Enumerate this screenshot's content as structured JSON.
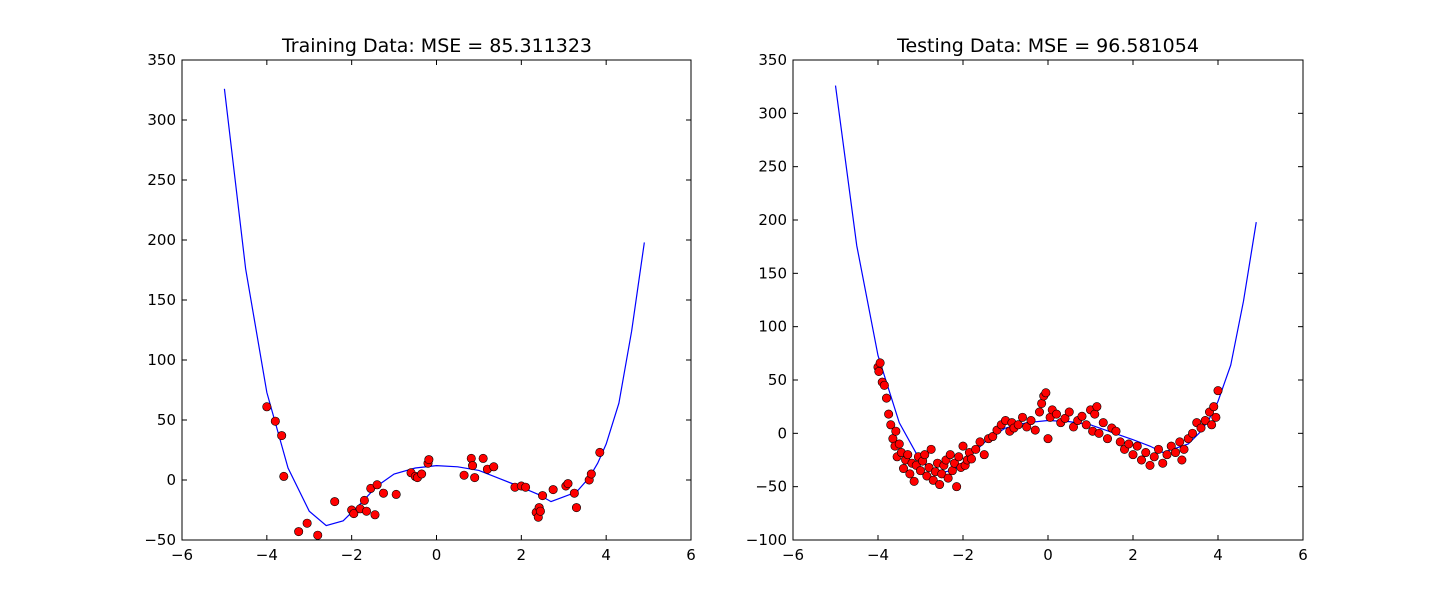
{
  "chart_data": [
    {
      "type": "scatter",
      "title": "Training Data: MSE = 85.311323",
      "xlabel": "",
      "ylabel": "",
      "xlim": [
        -6,
        6
      ],
      "ylim": [
        -50,
        350
      ],
      "xticks": [
        -6,
        -4,
        -2,
        0,
        2,
        4,
        6
      ],
      "yticks": [
        -50,
        0,
        50,
        100,
        150,
        200,
        250,
        300,
        350
      ],
      "xtick_labels": [
        "−6",
        "−4",
        "−2",
        "0",
        "2",
        "4",
        "6"
      ],
      "ytick_labels": [
        "−50",
        "0",
        "50",
        "100",
        "150",
        "200",
        "250",
        "300",
        "350"
      ],
      "grid": false,
      "fit_line": {
        "color": "#0000ff",
        "x_range": [
          -5,
          4.9
        ],
        "points": [
          [
            -5,
            326
          ],
          [
            -4.5,
            176
          ],
          [
            -4,
            73
          ],
          [
            -3.5,
            10
          ],
          [
            -3,
            -26
          ],
          [
            -2.6,
            -38
          ],
          [
            -2.2,
            -34
          ],
          [
            -1.8,
            -20
          ],
          [
            -1.4,
            -5
          ],
          [
            -1,
            5
          ],
          [
            -0.5,
            10
          ],
          [
            0,
            12
          ],
          [
            0.5,
            11
          ],
          [
            1,
            8
          ],
          [
            1.5,
            1
          ],
          [
            2,
            -6
          ],
          [
            2.4,
            -12
          ],
          [
            2.7,
            -18
          ],
          [
            3,
            -14
          ],
          [
            3.3,
            -10
          ],
          [
            3.6,
            2
          ],
          [
            3.8,
            14
          ],
          [
            4,
            30
          ],
          [
            4.3,
            64
          ],
          [
            4.6,
            124
          ],
          [
            4.9,
            198
          ]
        ]
      },
      "points": {
        "color": "#ff0000",
        "x": [
          -4.0,
          -3.8,
          -3.65,
          -3.6,
          -3.25,
          -3.05,
          -2.8,
          -2.4,
          -2.0,
          -1.95,
          -1.8,
          -1.7,
          -1.65,
          -1.55,
          -1.45,
          -1.4,
          -1.25,
          -0.95,
          -0.6,
          -0.5,
          -0.45,
          -0.35,
          -0.2,
          -0.18,
          0.65,
          0.82,
          0.85,
          0.9,
          1.1,
          1.2,
          1.35,
          1.85,
          2.0,
          2.1,
          2.35,
          2.4,
          2.42,
          2.45,
          2.5,
          2.75,
          3.05,
          3.1,
          3.25,
          3.3,
          3.6,
          3.65,
          3.85
        ],
        "y": [
          61,
          49,
          37,
          3,
          -43,
          -36,
          -46,
          -18,
          -25,
          -28,
          -24,
          -17,
          -26,
          -7,
          -29,
          -4,
          -11,
          -12,
          6,
          3,
          2,
          5,
          14,
          17,
          4,
          18,
          12,
          2,
          18,
          9,
          11,
          -6,
          -5,
          -6,
          -27,
          -31,
          -23,
          -26,
          -13,
          -8,
          -5,
          -3,
          -11,
          -23,
          0,
          5,
          23
        ]
      }
    },
    {
      "type": "scatter",
      "title": "Testing Data: MSE = 96.581054",
      "xlabel": "",
      "ylabel": "",
      "xlim": [
        -6,
        6
      ],
      "ylim": [
        -100,
        350
      ],
      "xticks": [
        -6,
        -4,
        -2,
        0,
        2,
        4,
        6
      ],
      "yticks": [
        -100,
        -50,
        0,
        50,
        100,
        150,
        200,
        250,
        300,
        350
      ],
      "xtick_labels": [
        "−6",
        "−4",
        "−2",
        "0",
        "2",
        "4",
        "6"
      ],
      "ytick_labels": [
        "−100",
        "−50",
        "0",
        "50",
        "100",
        "150",
        "200",
        "250",
        "300",
        "350"
      ],
      "grid": false,
      "fit_line": {
        "color": "#0000ff",
        "x_range": [
          -5,
          4.9
        ],
        "points": [
          [
            -5,
            326
          ],
          [
            -4.5,
            176
          ],
          [
            -4,
            73
          ],
          [
            -3.5,
            10
          ],
          [
            -3,
            -26
          ],
          [
            -2.6,
            -38
          ],
          [
            -2.2,
            -34
          ],
          [
            -1.8,
            -20
          ],
          [
            -1.4,
            -5
          ],
          [
            -1,
            5
          ],
          [
            -0.5,
            10
          ],
          [
            0,
            12
          ],
          [
            0.5,
            11
          ],
          [
            1,
            8
          ],
          [
            1.5,
            1
          ],
          [
            2,
            -6
          ],
          [
            2.4,
            -12
          ],
          [
            2.7,
            -18
          ],
          [
            3,
            -14
          ],
          [
            3.3,
            -10
          ],
          [
            3.6,
            2
          ],
          [
            3.8,
            14
          ],
          [
            4,
            30
          ],
          [
            4.3,
            64
          ],
          [
            4.6,
            124
          ],
          [
            4.9,
            198
          ]
        ]
      },
      "points": {
        "color": "#ff0000",
        "x": [
          -4.0,
          -3.98,
          -3.95,
          -3.9,
          -3.85,
          -3.8,
          -3.75,
          -3.7,
          -3.65,
          -3.6,
          -3.58,
          -3.55,
          -3.5,
          -3.45,
          -3.4,
          -3.35,
          -3.3,
          -3.25,
          -3.2,
          -3.15,
          -3.1,
          -3.05,
          -3.0,
          -2.95,
          -2.9,
          -2.85,
          -2.8,
          -2.75,
          -2.7,
          -2.65,
          -2.6,
          -2.55,
          -2.5,
          -2.45,
          -2.4,
          -2.35,
          -2.3,
          -2.25,
          -2.2,
          -2.15,
          -2.1,
          -2.05,
          -2.0,
          -1.95,
          -1.9,
          -1.85,
          -1.8,
          -1.7,
          -1.6,
          -1.5,
          -1.4,
          -1.3,
          -1.2,
          -1.1,
          -1.0,
          -0.9,
          -0.85,
          -0.8,
          -0.7,
          -0.6,
          -0.5,
          -0.4,
          -0.3,
          -0.2,
          -0.15,
          -0.1,
          -0.05,
          0.0,
          0.05,
          0.1,
          0.2,
          0.3,
          0.4,
          0.5,
          0.6,
          0.7,
          0.8,
          0.9,
          1.0,
          1.05,
          1.1,
          1.15,
          1.2,
          1.3,
          1.4,
          1.5,
          1.6,
          1.7,
          1.8,
          1.9,
          2.0,
          2.1,
          2.2,
          2.3,
          2.4,
          2.5,
          2.6,
          2.7,
          2.8,
          2.9,
          3.0,
          3.1,
          3.15,
          3.2,
          3.3,
          3.4,
          3.5,
          3.6,
          3.7,
          3.8,
          3.85,
          3.9,
          3.95,
          4.0
        ],
        "y": [
          62,
          58,
          66,
          48,
          45,
          33,
          18,
          8,
          -5,
          -12,
          2,
          -22,
          -10,
          -18,
          -33,
          -25,
          -20,
          -38,
          -28,
          -45,
          -30,
          -22,
          -35,
          -26,
          -20,
          -40,
          -32,
          -15,
          -44,
          -36,
          -28,
          -48,
          -38,
          -30,
          -25,
          -42,
          -20,
          -35,
          -28,
          -50,
          -22,
          -32,
          -12,
          -30,
          -25,
          -18,
          -24,
          -15,
          -8,
          -20,
          -5,
          -3,
          3,
          8,
          12,
          2,
          10,
          5,
          8,
          15,
          6,
          12,
          3,
          20,
          28,
          35,
          38,
          -5,
          15,
          22,
          18,
          10,
          14,
          20,
          6,
          12,
          16,
          8,
          22,
          2,
          18,
          25,
          0,
          10,
          -5,
          5,
          2,
          -8,
          -15,
          -10,
          -20,
          -12,
          -25,
          -18,
          -30,
          -22,
          -15,
          -28,
          -20,
          -12,
          -18,
          -8,
          -25,
          -15,
          -5,
          0,
          10,
          5,
          12,
          20,
          8,
          25,
          15,
          40
        ]
      }
    }
  ]
}
